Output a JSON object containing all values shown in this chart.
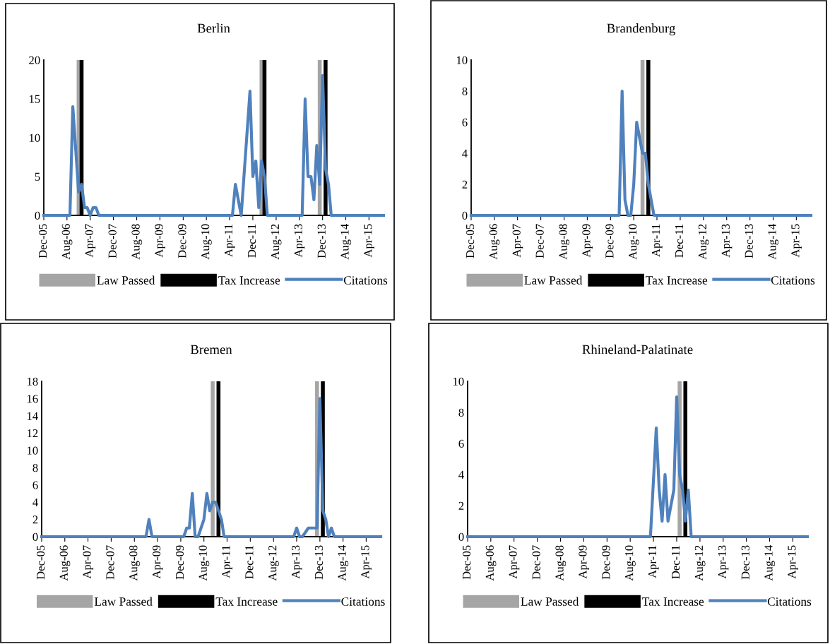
{
  "chart_data": [
    {
      "type": "line",
      "title": "Berlin",
      "x": [
        "2005-12",
        "2006-09",
        "2006-10",
        "2006-12",
        "2007-01",
        "2007-02",
        "2007-03",
        "2007-04",
        "2007-05",
        "2007-06",
        "2007-07",
        "2011-05",
        "2011-06",
        "2011-08",
        "2011-11",
        "2011-12",
        "2012-01",
        "2012-02",
        "2012-03",
        "2012-04",
        "2012-05",
        "2013-05",
        "2013-06",
        "2013-07",
        "2013-08",
        "2013-09",
        "2013-10",
        "2013-11",
        "2013-12",
        "2014-01",
        "2014-02",
        "2014-03",
        "2015-09"
      ],
      "series": [
        {
          "name": "Citations",
          "color": "#4f81bd",
          "values": [
            0,
            0,
            14,
            3,
            4,
            1,
            1,
            0,
            1,
            1,
            0,
            0,
            4,
            0,
            16,
            5,
            7,
            1,
            7,
            5,
            0,
            0,
            15,
            5,
            5,
            2,
            9,
            4,
            18,
            6,
            4,
            0,
            0
          ]
        }
      ],
      "ref_lines": [
        {
          "axis": "x",
          "value": "2006-12",
          "label": "Law Passed",
          "color": "#a5a5a5"
        },
        {
          "axis": "x",
          "value": "2007-01",
          "label": "Tax Increase",
          "color": "#000000"
        },
        {
          "axis": "x",
          "value": "2012-03",
          "color": "#a5a5a5"
        },
        {
          "axis": "x",
          "value": "2012-04",
          "color": "#000000"
        },
        {
          "axis": "x",
          "value": "2013-11",
          "color": "#a5a5a5"
        },
        {
          "axis": "x",
          "value": "2014-01",
          "color": "#000000"
        }
      ],
      "xlim": [
        "2005-12",
        "2015-09"
      ],
      "xticks": [
        {
          "value": "2005-12",
          "label": "Dec-05"
        },
        {
          "value": "2006-08",
          "label": "Aug-06"
        },
        {
          "value": "2007-04",
          "label": "Apr-07"
        },
        {
          "value": "2007-12",
          "label": "Dec-07"
        },
        {
          "value": "2008-08",
          "label": "Aug-08"
        },
        {
          "value": "2009-04",
          "label": "Apr-09"
        },
        {
          "value": "2009-12",
          "label": "Dec-09"
        },
        {
          "value": "2010-08",
          "label": "Aug-10"
        },
        {
          "value": "2011-04",
          "label": "Apr-11"
        },
        {
          "value": "2011-12",
          "label": "Dec-11"
        },
        {
          "value": "2012-08",
          "label": "Aug-12"
        },
        {
          "value": "2013-04",
          "label": "Apr-13"
        },
        {
          "value": "2013-12",
          "label": "Dec-13"
        },
        {
          "value": "2014-08",
          "label": "Aug-14"
        },
        {
          "value": "2015-04",
          "label": "Apr-15"
        }
      ],
      "ylim": [
        0,
        20
      ],
      "yticks": [
        0,
        5,
        10,
        15,
        20
      ],
      "grid": false,
      "legend": "bottom",
      "line_style": "solid",
      "marker": "none"
    },
    {
      "type": "line",
      "title": "Brandenburg",
      "x": [
        "2005-12",
        "2010-03",
        "2010-04",
        "2010-05",
        "2010-06",
        "2010-07",
        "2010-08",
        "2010-09",
        "2010-10",
        "2010-11",
        "2010-12",
        "2011-01",
        "2011-03",
        "2015-09"
      ],
      "series": [
        {
          "name": "Citations",
          "color": "#4f81bd",
          "values": [
            0,
            0,
            8,
            1,
            0,
            0,
            2,
            6,
            5,
            4,
            4,
            2,
            0,
            0
          ]
        }
      ],
      "ref_lines": [
        {
          "axis": "x",
          "value": "2010-11",
          "label": "Law Passed",
          "color": "#a5a5a5"
        },
        {
          "axis": "x",
          "value": "2011-01",
          "label": "Tax Increase",
          "color": "#000000"
        }
      ],
      "xlim": [
        "2005-12",
        "2015-09"
      ],
      "xticks": [
        {
          "value": "2005-12",
          "label": "Dec-05"
        },
        {
          "value": "2006-08",
          "label": "Aug-06"
        },
        {
          "value": "2007-04",
          "label": "Apr-07"
        },
        {
          "value": "2007-12",
          "label": "Dec-07"
        },
        {
          "value": "2008-08",
          "label": "Aug-08"
        },
        {
          "value": "2009-04",
          "label": "Apr-09"
        },
        {
          "value": "2009-12",
          "label": "Dec-09"
        },
        {
          "value": "2010-08",
          "label": "Aug-10"
        },
        {
          "value": "2011-04",
          "label": "Apr-11"
        },
        {
          "value": "2011-12",
          "label": "Dec-11"
        },
        {
          "value": "2012-08",
          "label": "Aug-12"
        },
        {
          "value": "2013-04",
          "label": "Apr-13"
        },
        {
          "value": "2013-12",
          "label": "Dec-13"
        },
        {
          "value": "2014-08",
          "label": "Aug-14"
        },
        {
          "value": "2015-04",
          "label": "Apr-15"
        }
      ],
      "ylim": [
        0,
        10
      ],
      "yticks": [
        0,
        2,
        4,
        6,
        8,
        10
      ],
      "grid": false,
      "legend": "bottom",
      "line_style": "solid",
      "marker": "none"
    },
    {
      "type": "line",
      "title": "Bremen",
      "x": [
        "2005-12",
        "2008-12",
        "2009-01",
        "2009-02",
        "2010-01",
        "2010-02",
        "2010-03",
        "2010-04",
        "2010-05",
        "2010-06",
        "2010-08",
        "2010-09",
        "2010-10",
        "2010-11",
        "2010-12",
        "2011-02",
        "2011-03",
        "2013-03",
        "2013-04",
        "2013-05",
        "2013-06",
        "2013-08",
        "2013-11",
        "2013-12",
        "2014-01",
        "2014-02",
        "2014-03",
        "2014-04",
        "2014-05",
        "2015-09"
      ],
      "series": [
        {
          "name": "Citations",
          "color": "#4f81bd",
          "values": [
            0,
            0,
            2,
            0,
            0,
            1,
            1,
            5,
            0,
            0,
            2,
            5,
            3,
            4,
            4,
            2,
            0,
            0,
            1,
            0,
            0,
            1,
            1,
            16,
            3,
            2,
            0,
            1,
            0,
            0
          ]
        }
      ],
      "ref_lines": [
        {
          "axis": "x",
          "value": "2010-11",
          "label": "Law Passed",
          "color": "#a5a5a5"
        },
        {
          "axis": "x",
          "value": "2011-01",
          "label": "Tax Increase",
          "color": "#000000"
        },
        {
          "axis": "x",
          "value": "2013-11",
          "color": "#a5a5a5"
        },
        {
          "axis": "x",
          "value": "2014-01",
          "color": "#000000"
        }
      ],
      "xlim": [
        "2005-12",
        "2015-09"
      ],
      "xticks": [
        {
          "value": "2005-12",
          "label": "Dec-05"
        },
        {
          "value": "2006-08",
          "label": "Aug-06"
        },
        {
          "value": "2007-04",
          "label": "Apr-07"
        },
        {
          "value": "2007-12",
          "label": "Dec-07"
        },
        {
          "value": "2008-08",
          "label": "Aug-08"
        },
        {
          "value": "2009-04",
          "label": "Apr-09"
        },
        {
          "value": "2009-12",
          "label": "Dec-09"
        },
        {
          "value": "2010-08",
          "label": "Aug-10"
        },
        {
          "value": "2011-04",
          "label": "Apr-11"
        },
        {
          "value": "2011-12",
          "label": "Dec-11"
        },
        {
          "value": "2012-08",
          "label": "Aug-12"
        },
        {
          "value": "2013-04",
          "label": "Apr-13"
        },
        {
          "value": "2013-12",
          "label": "Dec-13"
        },
        {
          "value": "2014-08",
          "label": "Aug-14"
        },
        {
          "value": "2015-04",
          "label": "Apr-15"
        }
      ],
      "ylim": [
        0,
        18
      ],
      "yticks": [
        0,
        2,
        4,
        6,
        8,
        10,
        12,
        14,
        16,
        18
      ],
      "grid": false,
      "legend": "bottom",
      "line_style": "solid",
      "marker": "none"
    },
    {
      "type": "line",
      "title": "Rhineland-Palatinate",
      "x": [
        "2005-12",
        "2011-03",
        "2011-05",
        "2011-06",
        "2011-07",
        "2011-08",
        "2011-09",
        "2011-11",
        "2011-12",
        "2012-01",
        "2012-02",
        "2012-03",
        "2012-04",
        "2012-05",
        "2015-09"
      ],
      "series": [
        {
          "name": "Citations",
          "color": "#4f81bd",
          "values": [
            0,
            0,
            7,
            3,
            1,
            4,
            1,
            3,
            9,
            4,
            3,
            1,
            3,
            0,
            0
          ]
        }
      ],
      "ref_lines": [
        {
          "axis": "x",
          "value": "2012-01",
          "label": "Law Passed",
          "color": "#a5a5a5"
        },
        {
          "axis": "x",
          "value": "2012-03",
          "label": "Tax Increase",
          "color": "#000000"
        }
      ],
      "xlim": [
        "2005-12",
        "2015-09"
      ],
      "xticks": [
        {
          "value": "2005-12",
          "label": "Dec-05"
        },
        {
          "value": "2006-08",
          "label": "Aug-06"
        },
        {
          "value": "2007-04",
          "label": "Apr-07"
        },
        {
          "value": "2007-12",
          "label": "Dec-07"
        },
        {
          "value": "2008-08",
          "label": "Aug-08"
        },
        {
          "value": "2009-04",
          "label": "Apr-09"
        },
        {
          "value": "2009-12",
          "label": "Dec-09"
        },
        {
          "value": "2010-08",
          "label": "Aug-10"
        },
        {
          "value": "2011-04",
          "label": "Apr-11"
        },
        {
          "value": "2011-12",
          "label": "Dec-11"
        },
        {
          "value": "2012-08",
          "label": "Aug-12"
        },
        {
          "value": "2013-04",
          "label": "Apr-13"
        },
        {
          "value": "2013-12",
          "label": "Dec-13"
        },
        {
          "value": "2014-08",
          "label": "Aug-14"
        },
        {
          "value": "2015-04",
          "label": "Apr-15"
        }
      ],
      "ylim": [
        0,
        10
      ],
      "yticks": [
        0,
        2,
        4,
        6,
        8,
        10
      ],
      "grid": false,
      "legend": "bottom",
      "line_style": "solid",
      "marker": "none"
    }
  ]
}
